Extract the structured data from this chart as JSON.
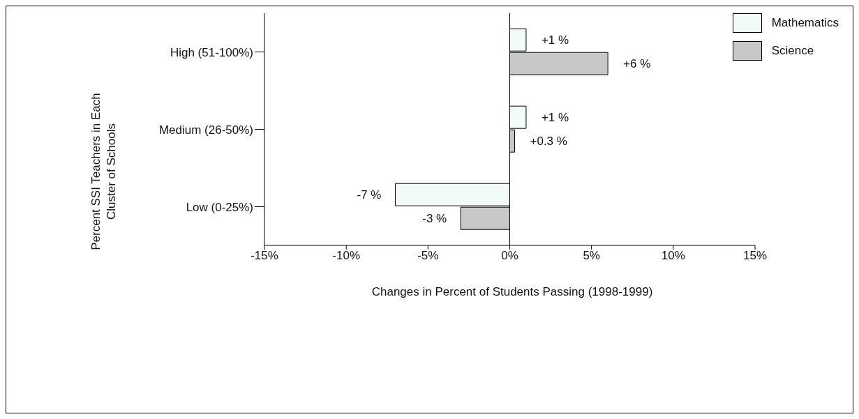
{
  "chart_data": {
    "type": "bar",
    "orientation": "horizontal",
    "ylabel": "Percent SSI Teachers in Each Cluster of Schools",
    "xlabel": "Changes in Percent of Students Passing (1998-1999)",
    "categories": [
      "High (51-100%)",
      "Medium (26-50%)",
      "Low (0-25%)"
    ],
    "series": [
      {
        "name": "Mathematics",
        "color": "#f2fafa",
        "values": [
          1,
          1,
          -7
        ],
        "value_labels": [
          "+1 %",
          "+1 %",
          "-7 %"
        ]
      },
      {
        "name": "Science",
        "color": "#c8c8c8",
        "values": [
          6,
          0.3,
          -3
        ],
        "value_labels": [
          "+6 %",
          "+0.3 %",
          "-3 %"
        ]
      }
    ],
    "xlim": [
      -15,
      15
    ],
    "xticks": [
      {
        "value": -15,
        "label": "-15%"
      },
      {
        "value": -10,
        "label": "-10%"
      },
      {
        "value": -5,
        "label": "-5%"
      },
      {
        "value": 0,
        "label": "0%"
      },
      {
        "value": 5,
        "label": "5%"
      },
      {
        "value": 10,
        "label": "10%"
      },
      {
        "value": 15,
        "label": "15%"
      }
    ],
    "ref_lines": [
      {
        "axis": "x",
        "value": 0
      }
    ],
    "grid": false,
    "legend": "top right"
  }
}
